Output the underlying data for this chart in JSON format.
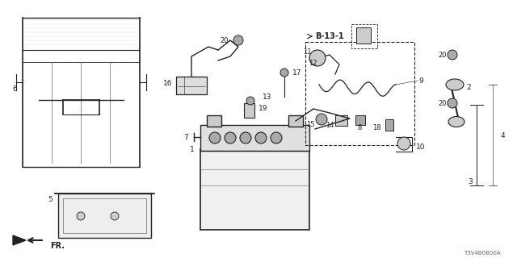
{
  "bg_color": "#ffffff",
  "diagram_code": "T3V4B0B00A",
  "dark": "#222222",
  "gray": "#666666",
  "light": "#cccccc",
  "med": "#aaaaaa"
}
